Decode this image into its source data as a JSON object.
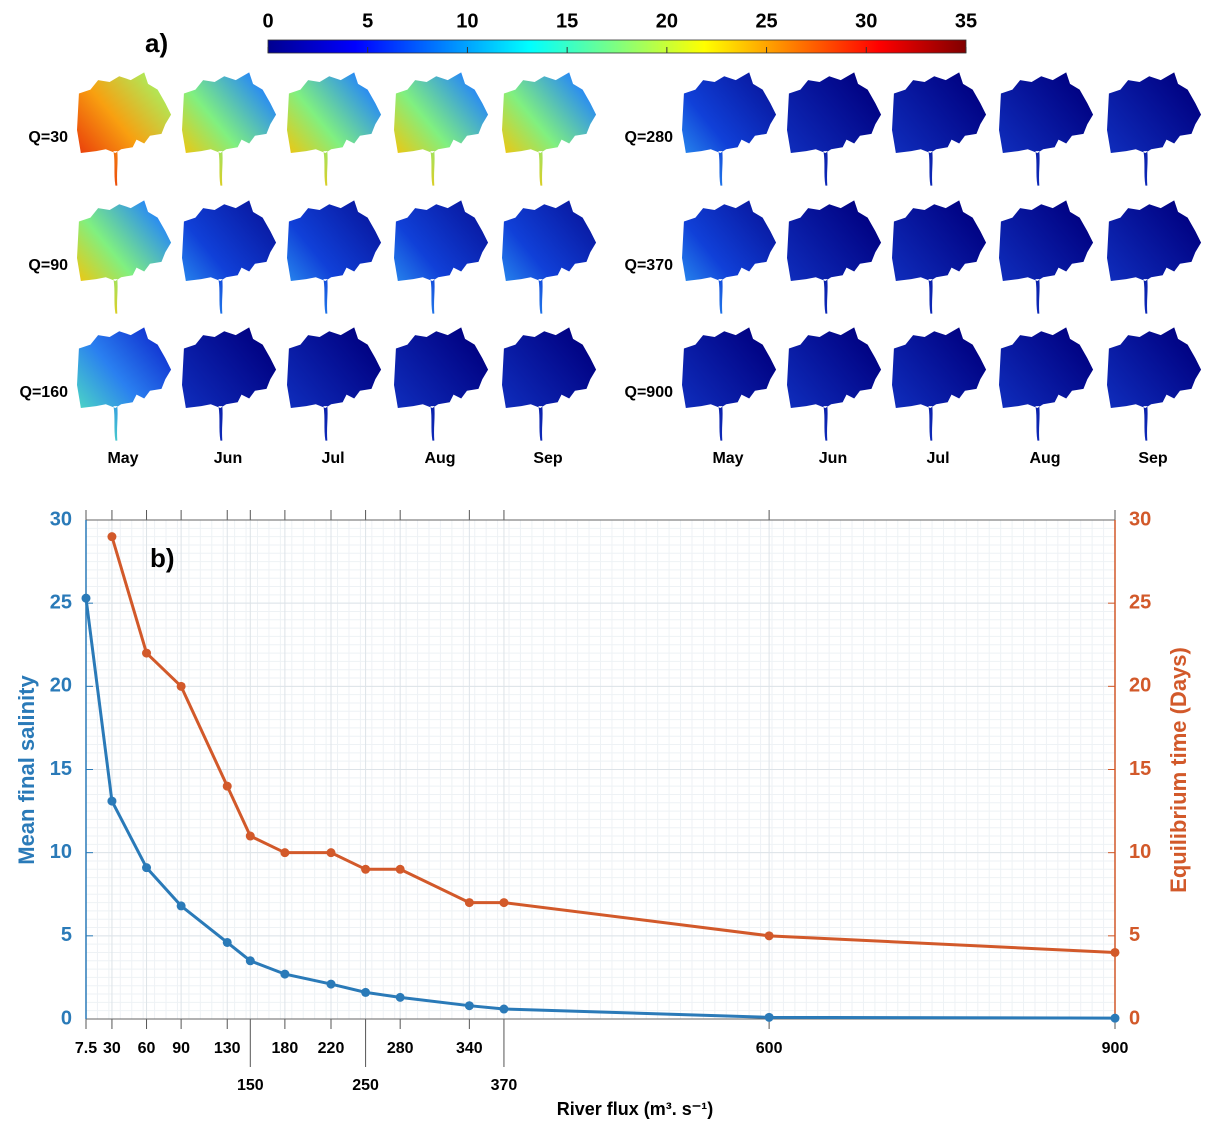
{
  "panel_a": {
    "label": "a)",
    "colorbar": {
      "lim": [
        0,
        35
      ],
      "ticks": [
        0,
        5,
        10,
        15,
        20,
        25,
        30,
        35
      ]
    },
    "left": {
      "rows": [
        "Q=30",
        "Q=90",
        "Q=160"
      ],
      "months": [
        "May",
        "Jun",
        "Jul",
        "Aug",
        "Sep"
      ]
    },
    "right": {
      "rows": [
        "Q=280",
        "Q=370",
        "Q=900"
      ],
      "months": [
        "May",
        "Jun",
        "Jul",
        "Aug",
        "Sep"
      ]
    }
  },
  "chart_data": {
    "type": "line",
    "label": "b)",
    "xlabel": "River flux (m³. s⁻¹)",
    "ylabel": "Mean final salinity",
    "y2label": "Equilibrium time (Days)",
    "x": [
      7.5,
      30,
      60,
      90,
      130,
      150,
      180,
      220,
      250,
      280,
      340,
      370,
      600,
      900
    ],
    "xlim": [
      7.5,
      900
    ],
    "xticks": [
      7.5,
      30,
      60,
      90,
      130,
      150,
      180,
      220,
      250,
      280,
      340,
      370,
      600,
      900
    ],
    "ylim": [
      0,
      30
    ],
    "yticks": [
      0,
      5,
      10,
      15,
      20,
      25,
      30
    ],
    "y2lim": [
      0,
      30
    ],
    "y2ticks": [
      0,
      5,
      10,
      15,
      20,
      25,
      30
    ],
    "grid": true,
    "series": [
      {
        "name": "Mean final salinity",
        "color": "#2a7ab8",
        "values": [
          25.3,
          13.1,
          9.1,
          6.8,
          4.6,
          3.5,
          2.7,
          2.1,
          1.6,
          1.3,
          0.8,
          0.6,
          0.1,
          0.05
        ]
      },
      {
        "name": "Equilibrium time (Days)",
        "color": "#d2592a",
        "axis": "y2",
        "values": [
          null,
          29,
          22,
          20,
          14,
          11,
          10,
          10,
          9,
          9,
          7,
          7,
          5,
          4
        ]
      }
    ]
  }
}
